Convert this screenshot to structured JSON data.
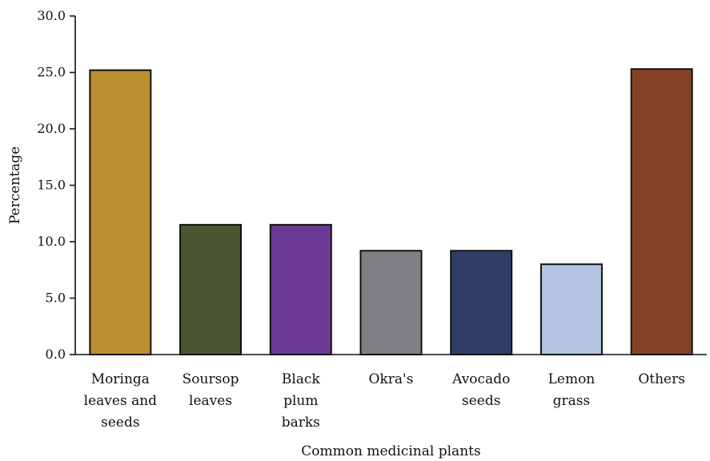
{
  "chart_data": {
    "type": "bar",
    "categories": [
      [
        "Moringa",
        "leaves and",
        "seeds"
      ],
      [
        "Soursop",
        "leaves"
      ],
      [
        "Black",
        "plum",
        "barks"
      ],
      [
        "Okra's"
      ],
      [
        "Avocado",
        "seeds"
      ],
      [
        "Lemon",
        "grass"
      ],
      [
        "Others"
      ]
    ],
    "values": [
      25.2,
      11.5,
      11.5,
      9.2,
      9.2,
      8.0,
      25.3
    ],
    "colors": [
      "#BA8E2E",
      "#4A5632",
      "#6B3A96",
      "#7F8084",
      "#2E3C66",
      "#B4C5E3",
      "#834226"
    ],
    "title": "",
    "xlabel": "Common medicinal plants",
    "ylabel": "Percentage",
    "ylim": [
      0,
      30
    ],
    "yticks": [
      "0.0",
      "5.0",
      "10.0",
      "15.0",
      "20.0",
      "25.0",
      "30.0"
    ],
    "grid": false,
    "legend": "none"
  }
}
